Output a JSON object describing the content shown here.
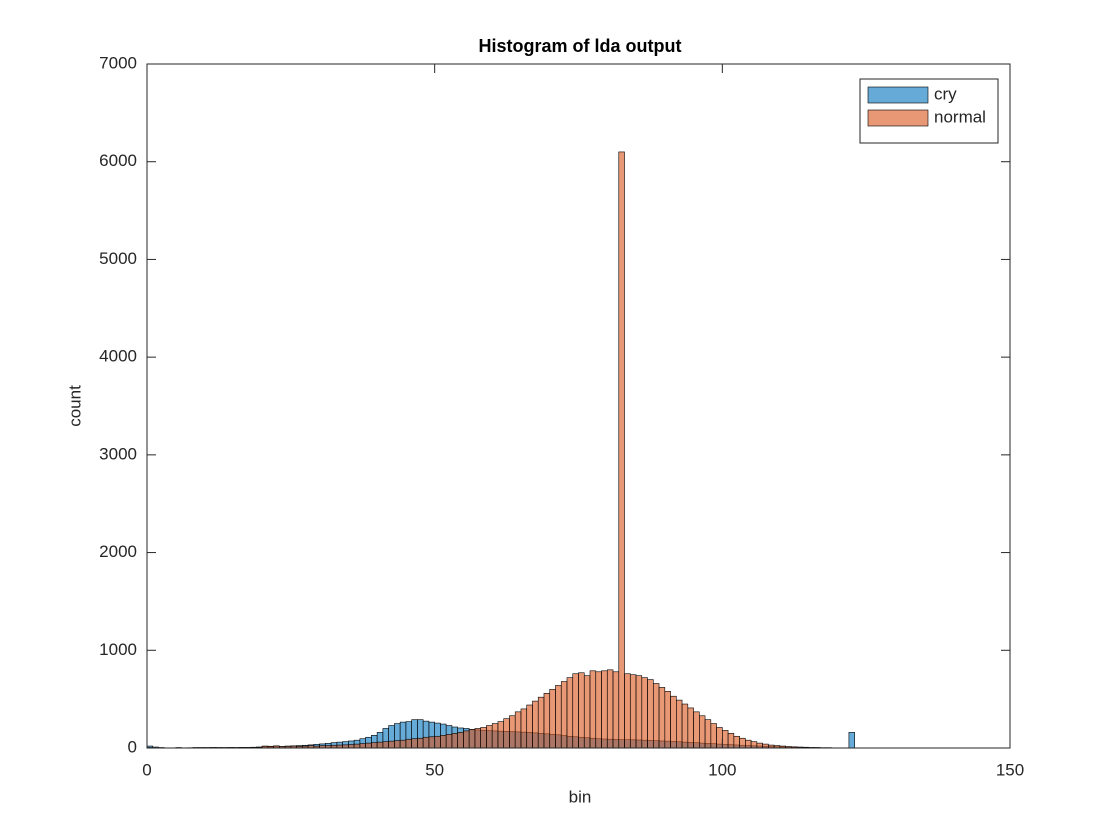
{
  "chart_data": {
    "type": "histogram",
    "title": "Histogram of lda output",
    "x_label": "bin",
    "y_label": "count",
    "bins": [
      0,
      1,
      2,
      3,
      4,
      5,
      6,
      7,
      8,
      9,
      10,
      11,
      12,
      13,
      14,
      15,
      16,
      17,
      18,
      19,
      20,
      21,
      22,
      23,
      24,
      25,
      26,
      27,
      28,
      29,
      30,
      31,
      32,
      33,
      34,
      35,
      36,
      37,
      38,
      39,
      40,
      41,
      42,
      43,
      44,
      45,
      46,
      47,
      48,
      49,
      50,
      51,
      52,
      53,
      54,
      55,
      56,
      57,
      58,
      59,
      60,
      61,
      62,
      63,
      64,
      65,
      66,
      67,
      68,
      69,
      70,
      71,
      72,
      73,
      74,
      75,
      76,
      77,
      78,
      79,
      80,
      81,
      82,
      83,
      84,
      85,
      86,
      87,
      88,
      89,
      90,
      91,
      92,
      93,
      94,
      95,
      96,
      97,
      98,
      99,
      100,
      101,
      102,
      103,
      104,
      105,
      106,
      107,
      108,
      109,
      110,
      111,
      112,
      113,
      114,
      115,
      116,
      117,
      118,
      119,
      120,
      121,
      122,
      123,
      124,
      125,
      126,
      127,
      128,
      129,
      130,
      131,
      132,
      133,
      134,
      135,
      136,
      137,
      138,
      139,
      140,
      141,
      142,
      143,
      144,
      145,
      146,
      147,
      148,
      149,
      150
    ],
    "series": [
      {
        "name": "cry",
        "color": "#0072bd",
        "values": [
          20,
          10,
          5,
          0,
          0,
          5,
          0,
          2,
          3,
          3,
          3,
          5,
          4,
          3,
          5,
          4,
          6,
          5,
          8,
          10,
          15,
          12,
          18,
          15,
          20,
          22,
          25,
          28,
          32,
          38,
          42,
          48,
          55,
          60,
          65,
          72,
          80,
          95,
          110,
          130,
          160,
          200,
          230,
          250,
          265,
          270,
          290,
          290,
          275,
          265,
          255,
          245,
          230,
          215,
          205,
          200,
          190,
          185,
          180,
          178,
          175,
          172,
          170,
          168,
          165,
          162,
          160,
          155,
          150,
          145,
          140,
          135,
          128,
          120,
          115,
          110,
          105,
          100,
          95,
          92,
          90,
          88,
          86,
          85,
          84,
          82,
          80,
          78,
          75,
          72,
          70,
          67,
          64,
          60,
          57,
          54,
          50,
          47,
          44,
          40,
          37,
          34,
          31,
          28,
          25,
          22,
          20,
          18,
          15,
          13,
          11,
          10,
          8,
          7,
          6,
          5,
          4,
          3,
          3,
          2,
          2,
          2,
          160,
          2,
          2,
          1,
          1,
          1,
          1,
          1,
          1,
          1,
          0,
          0,
          1,
          0,
          0,
          1,
          0,
          0,
          1,
          0,
          0,
          0,
          0,
          0,
          1,
          0,
          0,
          0
        ]
      },
      {
        "name": "normal",
        "color": "#d95319",
        "values": [
          5,
          0,
          0,
          0,
          0,
          0,
          0,
          3,
          5,
          5,
          5,
          5,
          5,
          5,
          5,
          5,
          5,
          6,
          6,
          8,
          20,
          18,
          22,
          15,
          18,
          20,
          18,
          20,
          25,
          20,
          25,
          25,
          28,
          30,
          32,
          35,
          40,
          45,
          50,
          55,
          60,
          65,
          70,
          75,
          80,
          90,
          95,
          100,
          110,
          115,
          120,
          130,
          140,
          150,
          160,
          175,
          190,
          200,
          210,
          230,
          250,
          270,
          300,
          330,
          370,
          400,
          440,
          480,
          520,
          560,
          600,
          640,
          680,
          720,
          760,
          770,
          740,
          790,
          780,
          790,
          800,
          780,
          6100,
          760,
          750,
          740,
          720,
          700,
          660,
          620,
          580,
          530,
          490,
          450,
          410,
          370,
          330,
          290,
          250,
          210,
          180,
          150,
          120,
          100,
          80,
          65,
          50,
          40,
          30,
          25,
          20,
          15,
          12,
          10,
          8,
          5,
          5,
          3,
          3,
          2,
          2,
          2,
          2,
          1,
          1,
          1,
          1,
          1,
          1,
          1,
          1,
          1,
          0,
          1,
          1,
          0,
          0,
          1,
          0,
          0,
          1,
          0,
          0,
          0,
          0,
          0,
          0,
          0,
          0,
          0
        ]
      }
    ],
    "xlim": [
      0,
      150
    ],
    "xticks": [
      0,
      50,
      100,
      150
    ],
    "ylim": [
      0,
      7000
    ],
    "yticks": [
      0,
      1000,
      2000,
      3000,
      4000,
      5000,
      6000,
      7000
    ],
    "legend": "upper right"
  }
}
